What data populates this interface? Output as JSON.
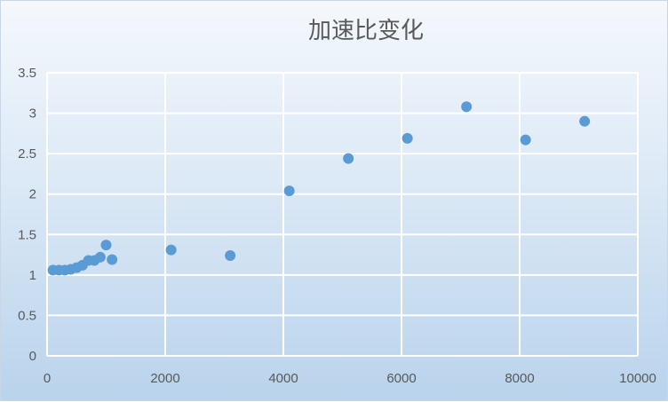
{
  "chart_data": {
    "type": "scatter",
    "title": "加速比变化",
    "xlabel": "",
    "ylabel": "",
    "xlim": [
      0,
      10000
    ],
    "ylim": [
      0,
      3.5
    ],
    "x_ticks": [
      "0",
      "2000",
      "4000",
      "6000",
      "8000",
      "10000"
    ],
    "y_ticks": [
      "0",
      "0.5",
      "1",
      "1.5",
      "2",
      "2.5",
      "3",
      "3.5"
    ],
    "grid": true,
    "legend": "none",
    "point_color": "#5b9bd5",
    "series": [
      {
        "points": [
          [
            100,
            1.06
          ],
          [
            200,
            1.06
          ],
          [
            300,
            1.06
          ],
          [
            400,
            1.07
          ],
          [
            500,
            1.09
          ],
          [
            600,
            1.12
          ],
          [
            700,
            1.18
          ],
          [
            800,
            1.18
          ],
          [
            900,
            1.22
          ],
          [
            1000,
            1.37
          ],
          [
            1100,
            1.19
          ],
          [
            2100,
            1.31
          ],
          [
            3100,
            1.24
          ],
          [
            4100,
            2.04
          ],
          [
            5100,
            2.44
          ],
          [
            6100,
            2.69
          ],
          [
            7100,
            3.08
          ],
          [
            8100,
            2.67
          ],
          [
            9100,
            2.9
          ]
        ]
      }
    ]
  }
}
